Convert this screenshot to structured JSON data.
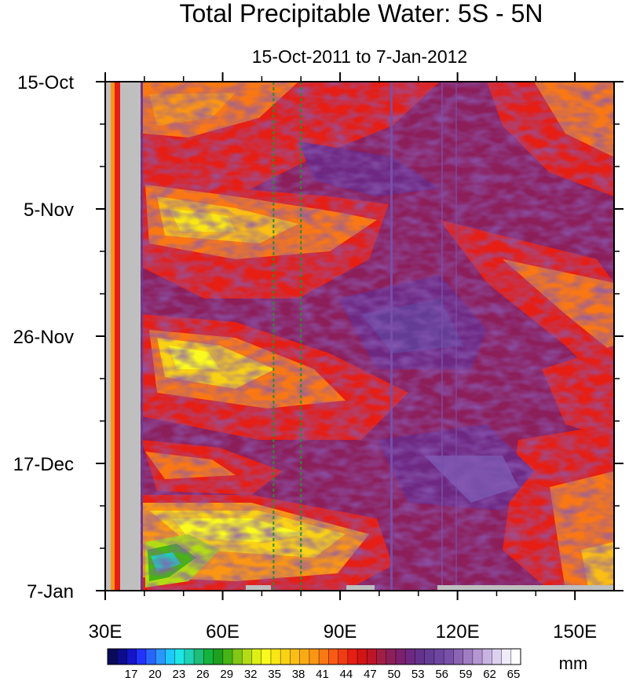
{
  "chart_data": {
    "type": "heatmap",
    "title": "Total Precipitable Water: 5S - 5N",
    "subtitle": "15-Oct-2011 to 7-Jan-2012",
    "x_range": [
      30,
      160
    ],
    "x_ticks": [
      {
        "value": 30,
        "label": "30E"
      },
      {
        "value": 60,
        "label": "60E"
      },
      {
        "value": 90,
        "label": "90E"
      },
      {
        "value": 120,
        "label": "120E"
      },
      {
        "value": 150,
        "label": "150E"
      }
    ],
    "y_range_days": [
      0,
      84
    ],
    "y_ticks": [
      {
        "day": 0,
        "label": "15-Oct"
      },
      {
        "day": 21,
        "label": "5-Nov"
      },
      {
        "day": 42,
        "label": "26-Nov"
      },
      {
        "day": 63,
        "label": "17-Dec"
      },
      {
        "day": 84,
        "label": "7-Jan"
      }
    ],
    "reference_lines_lon": [
      73,
      80
    ],
    "reference_line_color": "#2e8b2e",
    "missing_color": "#bfbfbf",
    "colorbar": {
      "unit": "mm",
      "labels": [
        "17",
        "20",
        "23",
        "26",
        "29",
        "32",
        "35",
        "38",
        "41",
        "44",
        "47",
        "50",
        "53",
        "56",
        "59",
        "62",
        "65"
      ],
      "colors": [
        "#0a0a5a",
        "#0c0c8c",
        "#1414c8",
        "#2232ff",
        "#2a64ff",
        "#2a96ff",
        "#1ec8ff",
        "#1ee6e6",
        "#1ed2b4",
        "#1ebe78",
        "#14b43c",
        "#1ea01e",
        "#46b414",
        "#82c814",
        "#b4dc14",
        "#dcf014",
        "#fafa1e",
        "#fae614",
        "#fad214",
        "#fabe14",
        "#faaa14",
        "#fa9614",
        "#fa7814",
        "#fa5a14",
        "#f03c14",
        "#e61e14",
        "#d21414",
        "#be1428",
        "#a01e46",
        "#8c1e5a",
        "#7d1e6e",
        "#6e2882",
        "#64328c",
        "#643c96",
        "#6e46a0",
        "#7850aa",
        "#8c64b4",
        "#a07dc3",
        "#b496d2",
        "#c8b4e1",
        "#dcd2f0",
        "#f0ebfa",
        "#ffffff"
      ]
    }
  }
}
